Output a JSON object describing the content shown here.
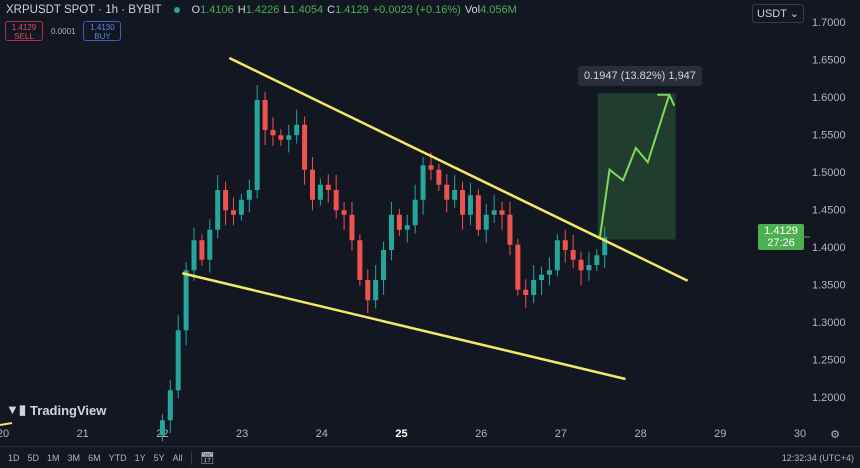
{
  "header": {
    "symbol": "XRPUSDT SPOT · 1h · BYBIT",
    "ohlc": [
      {
        "k": "O",
        "v": "1.4106"
      },
      {
        "k": "H",
        "v": "1.4226"
      },
      {
        "k": "L",
        "v": "1.4054"
      },
      {
        "k": "C",
        "v": "1.4129"
      },
      {
        "k": "",
        "v": "+0.0023 (+0.16%)"
      },
      {
        "k": "Vol",
        "v": "4.056M"
      }
    ]
  },
  "trade": {
    "sell_price": "1.4129",
    "sell_label": "SELL",
    "spread": "0.0001",
    "buy_price": "1.4130",
    "buy_label": "BUY"
  },
  "currency": "USDT ⌄",
  "current_price": {
    "price": "1.4129",
    "countdown": "27:26",
    "color": "#4caf50"
  },
  "measure_label": "0.1947 (13.82%) 1,947",
  "logo": "TradingView",
  "ranges": [
    "1D",
    "5D",
    "1M",
    "3M",
    "6M",
    "YTD",
    "1Y",
    "5Y",
    "All"
  ],
  "clock": "12:32:34 (UTC+4)",
  "colors": {
    "up": "#26a69a",
    "down": "#ef5350",
    "trendline": "#f5e663",
    "projection": "#7ddc5c",
    "background": "#131722"
  },
  "chart_data": {
    "type": "candlestick",
    "x_ticks": [
      "20",
      "21",
      "22",
      "23",
      "24",
      "25",
      "26",
      "27",
      "28",
      "29",
      "30"
    ],
    "y_ticks": [
      "1.2000",
      "1.2500",
      "1.3000",
      "1.3500",
      "1.4000",
      "1.4500",
      "1.5000",
      "1.5500",
      "1.6000",
      "1.6500",
      "1.7000"
    ],
    "xlim": [
      20,
      30.3
    ],
    "ylim": [
      1.17,
      1.725
    ],
    "closes_start_day": 22.0,
    "closes_end_day": 27.55,
    "closes": [
      1.169,
      1.209,
      1.289,
      1.369,
      1.409,
      1.383,
      1.423,
      1.476,
      1.449,
      1.443,
      1.463,
      1.476,
      1.596,
      1.556,
      1.549,
      1.543,
      1.549,
      1.563,
      1.503,
      1.463,
      1.483,
      1.476,
      1.449,
      1.443,
      1.409,
      1.356,
      1.329,
      1.356,
      1.396,
      1.443,
      1.423,
      1.429,
      1.463,
      1.509,
      1.503,
      1.483,
      1.463,
      1.476,
      1.443,
      1.469,
      1.423,
      1.443,
      1.449,
      1.443,
      1.403,
      1.343,
      1.336,
      1.356,
      1.363,
      1.369,
      1.409,
      1.396,
      1.383,
      1.369,
      1.376,
      1.389,
      1.413
    ],
    "trendlines": [
      {
        "from": [
          22.84,
          1.652
        ],
        "to": [
          28.59,
          1.355
        ]
      },
      {
        "from": [
          22.25,
          1.365
        ],
        "to": [
          27.81,
          1.224
        ]
      }
    ],
    "projection_box": {
      "x": [
        27.46,
        28.44
      ],
      "y": [
        1.41,
        1.605
      ]
    },
    "projection_path": [
      [
        27.49,
        1.413
      ],
      [
        27.61,
        1.503
      ],
      [
        27.78,
        1.489
      ],
      [
        27.94,
        1.532
      ],
      [
        28.09,
        1.513
      ],
      [
        28.36,
        1.603
      ]
    ]
  }
}
